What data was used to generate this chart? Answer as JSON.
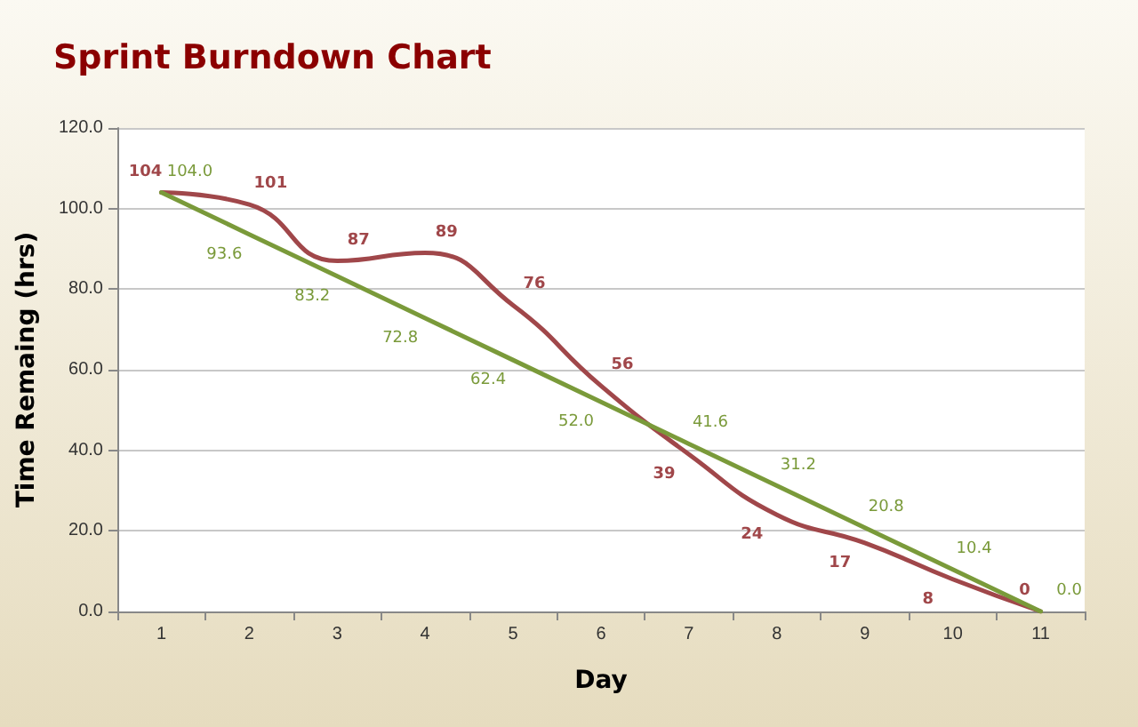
{
  "chart_data": {
    "type": "line",
    "title": "Sprint Burndown Chart",
    "xlabel": "Day",
    "ylabel": "Time Remaing (hrs)",
    "categories": [
      "1",
      "2",
      "3",
      "4",
      "5",
      "6",
      "7",
      "8",
      "9",
      "10",
      "11"
    ],
    "series": [
      {
        "color": "#a0474a",
        "values": [
          104,
          101,
          87,
          89,
          76,
          56,
          39,
          24,
          17,
          8,
          0
        ]
      },
      {
        "color": "#7a9a3a",
        "values": [
          104.0,
          93.6,
          83.2,
          72.8,
          62.4,
          52.0,
          41.6,
          31.2,
          20.8,
          10.4,
          0.0
        ],
        "value_labels": [
          "104.0",
          "93.6",
          "83.2",
          "72.8",
          "62.4",
          "52.0",
          "41.6",
          "31.2",
          "20.8",
          "10.4",
          "0.0"
        ]
      }
    ],
    "ylim": [
      0,
      120
    ],
    "yticks": [
      {
        "value": 0,
        "label": "0.0"
      },
      {
        "value": 20,
        "label": "20.0"
      },
      {
        "value": 40,
        "label": "40.0"
      },
      {
        "value": 60,
        "label": "60.0"
      },
      {
        "value": 80,
        "label": "80.0"
      },
      {
        "value": 100,
        "label": "100.0"
      },
      {
        "value": 120,
        "label": "120.0"
      }
    ],
    "grid": "y",
    "marker": "none",
    "line_style": "solid",
    "data_labels": true
  }
}
